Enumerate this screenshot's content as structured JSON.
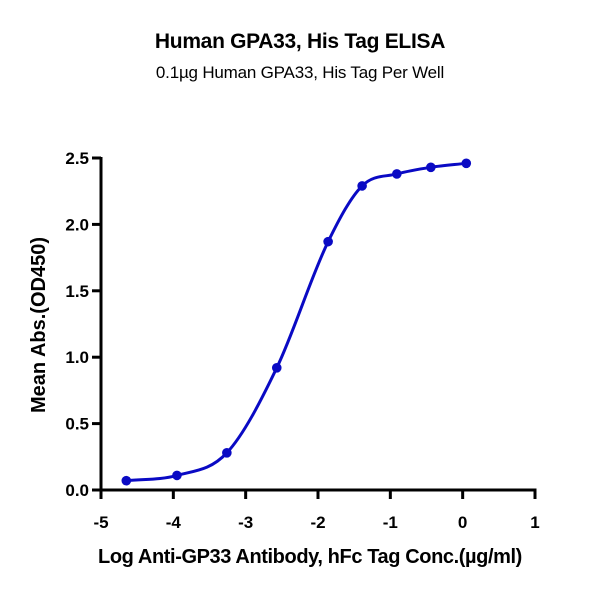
{
  "chart_data": {
    "type": "line",
    "title": "Human GPA33, His Tag ELISA",
    "subtitle": "0.1µg Human GPA33, His Tag Per Well",
    "xlabel": "Log Anti-GP33 Antibody, hFc Tag Conc.(µg/ml)",
    "ylabel": "Mean Abs.(OD450)",
    "xlim": [
      -5,
      1
    ],
    "ylim": [
      0,
      2.5
    ],
    "xticks": [
      -5,
      -4,
      -3,
      -2,
      -1,
      0,
      1
    ],
    "xtick_labels": [
      "-5",
      "-4",
      "-3",
      "-2",
      "-1",
      "0",
      "1"
    ],
    "yticks": [
      0.0,
      0.5,
      1.0,
      1.5,
      2.0,
      2.5
    ],
    "ytick_labels": [
      "0.0",
      "0.5",
      "1.0",
      "1.5",
      "2.0",
      "2.5"
    ],
    "grid": false,
    "legend": null,
    "series": [
      {
        "name": "Human GPA33, His Tag",
        "color": "#0a0ac4",
        "marker": "circle",
        "fit": "sigmoidal 4PL curve",
        "x": [
          -4.65,
          -3.95,
          -3.26,
          -2.57,
          -1.86,
          -1.39,
          -0.91,
          -0.44,
          0.05
        ],
        "y": [
          0.07,
          0.11,
          0.28,
          0.92,
          1.87,
          2.29,
          2.38,
          2.43,
          2.46
        ]
      }
    ]
  }
}
